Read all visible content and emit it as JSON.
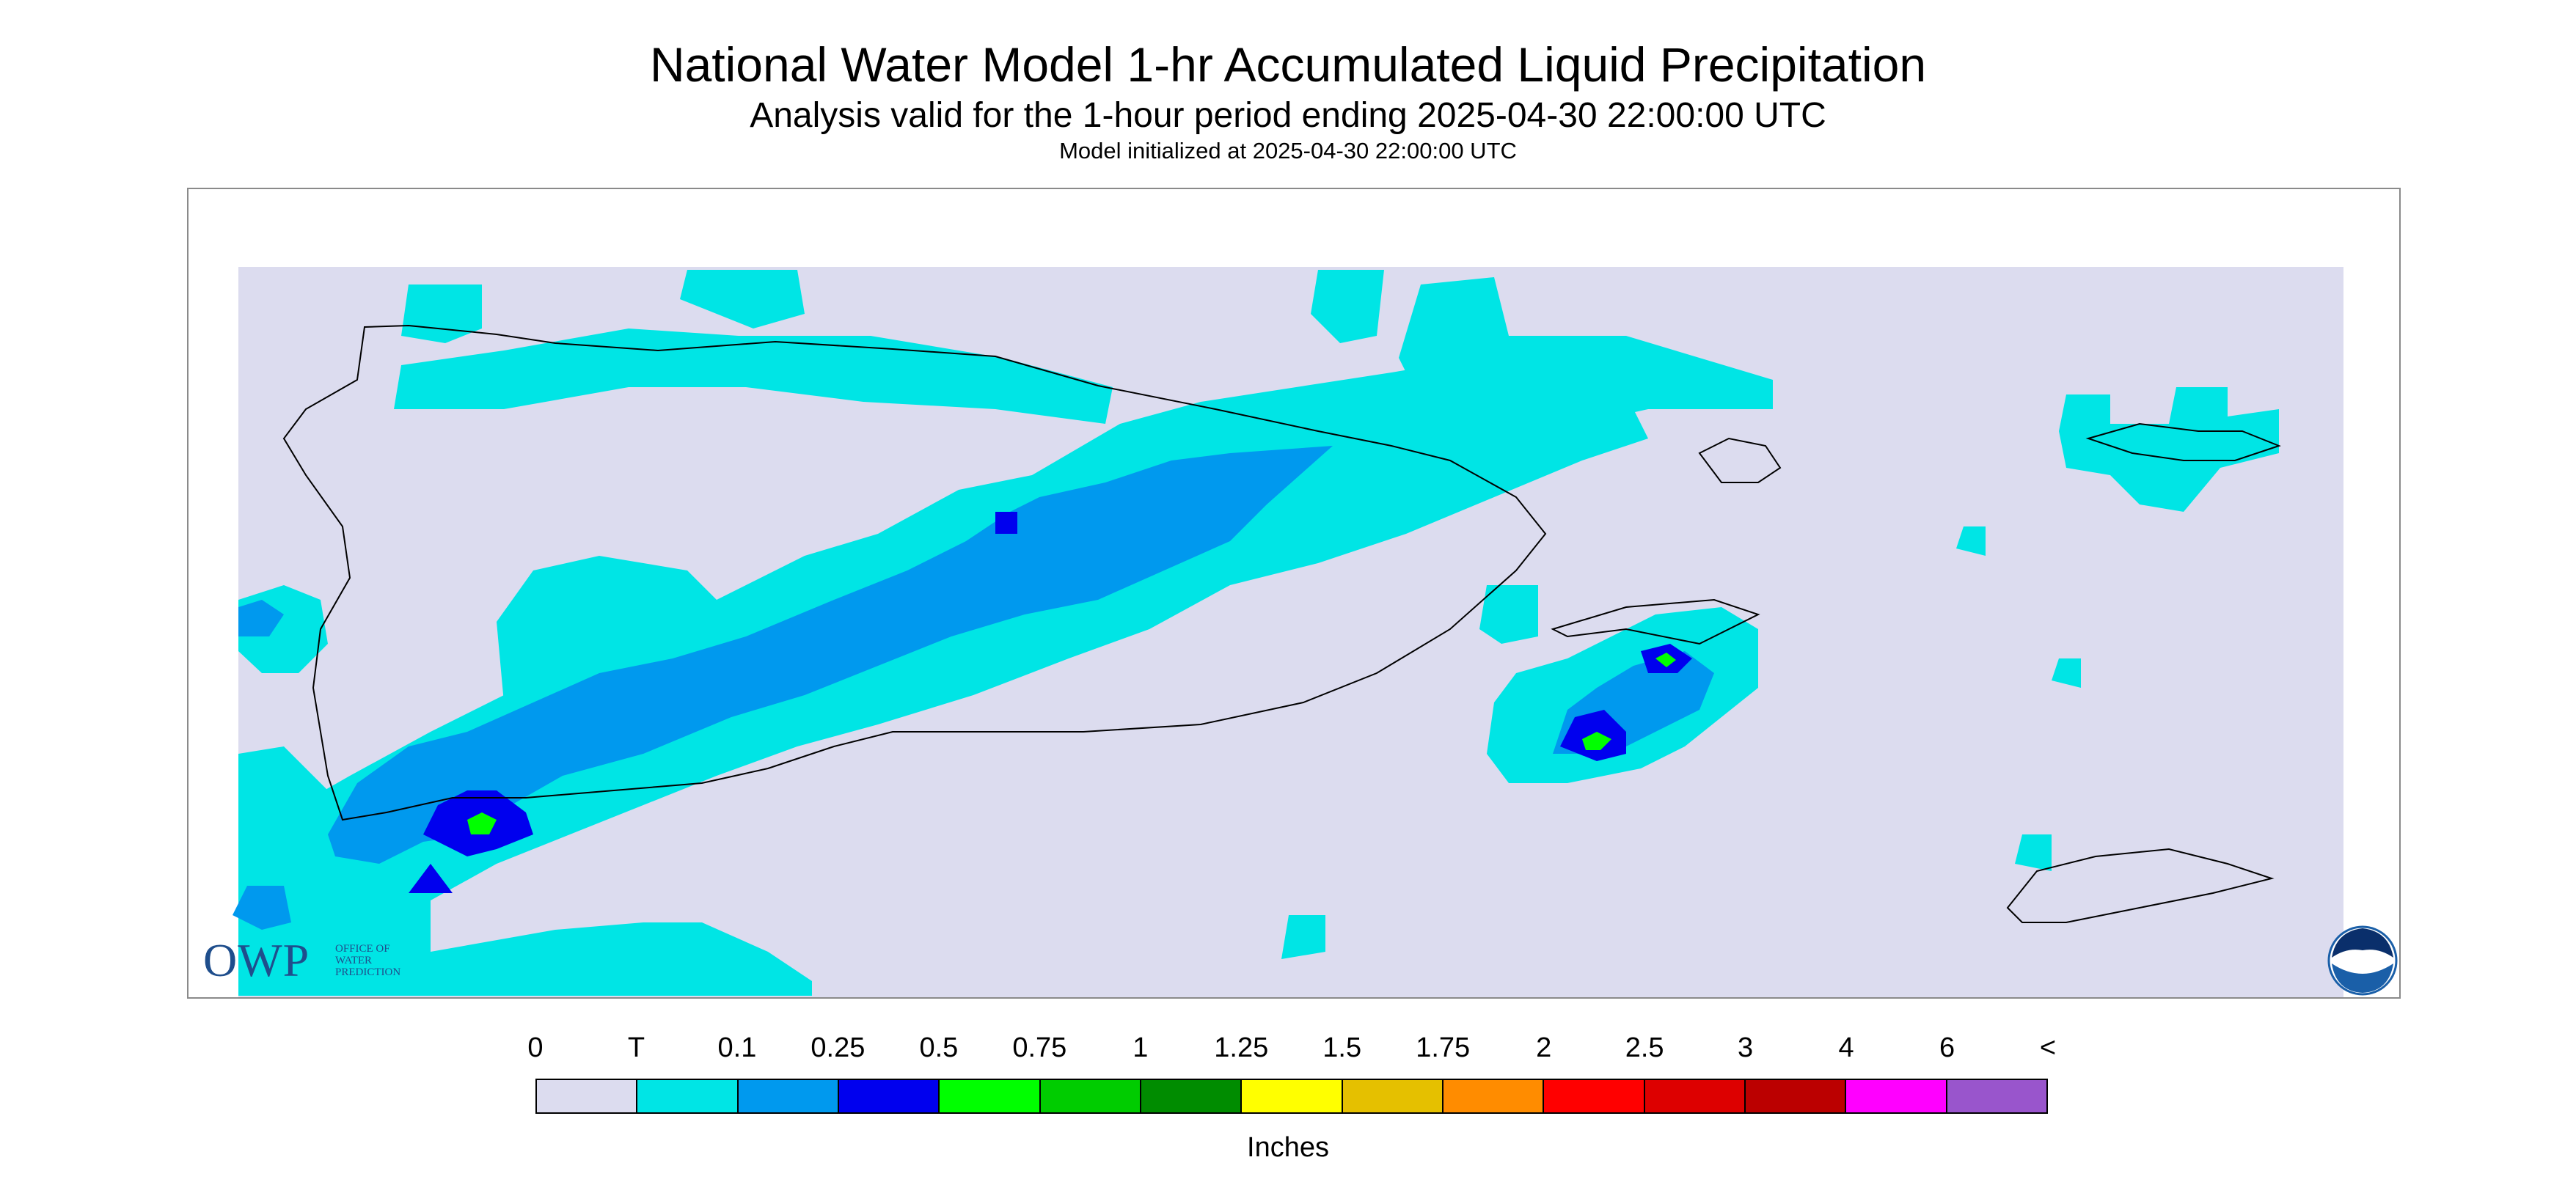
{
  "header": {
    "title": "National Water Model 1-hr Accumulated Liquid Precipitation",
    "subtitle": "Analysis valid for the 1-hour period ending 2025-04-30 22:00:00 UTC",
    "init_line": "Model initialized at 2025-04-30 22:00:00 UTC"
  },
  "map": {
    "background_color": "#dcdcef",
    "coastline_color": "#000000",
    "precip_colors": {
      "trace": "#00e5e5",
      "p01": "#0099ee",
      "p025": "#0000ee",
      "p05": "#00ff00"
    }
  },
  "logos": {
    "owp_mark": "OWP",
    "owp_text": "OFFICE OF\nWATER\nPREDICTION",
    "noaa_icon": "noaa-logo-icon"
  },
  "legend": {
    "ticks": [
      "0",
      "T",
      "0.1",
      "0.25",
      "0.5",
      "0.75",
      "1",
      "1.25",
      "1.5",
      "1.75",
      "2",
      "2.5",
      "3",
      "4",
      "6",
      "<"
    ],
    "colors": [
      "#dcdcef",
      "#00e5e5",
      "#0099ee",
      "#0000ee",
      "#00ff00",
      "#00cc00",
      "#008c00",
      "#ffff00",
      "#e5c000",
      "#ff8c00",
      "#ff0000",
      "#dd0000",
      "#bb0000",
      "#ff00ff",
      "#9955cc"
    ],
    "units": "Inches"
  }
}
